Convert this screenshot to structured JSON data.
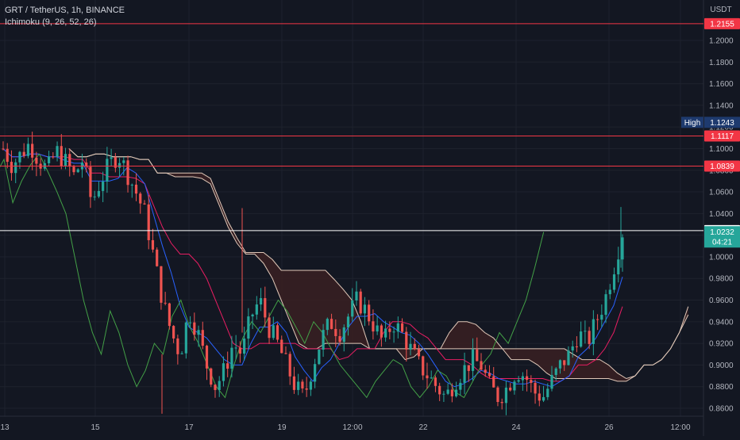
{
  "header": {
    "symbol_line": "GRT / TetherUS, 1h, BINANCE",
    "indicator_line": "Ichimoku (9, 26, 52, 26)"
  },
  "price_axis": {
    "currency": "USDT",
    "ticks": [
      "1.2000",
      "1.1800",
      "1.1600",
      "1.1400",
      "1.1200",
      "1.1000",
      "1.0800",
      "1.0600",
      "1.0400",
      "1.0200",
      "1.0000",
      "0.9800",
      "0.9600",
      "0.9400",
      "0.9200",
      "0.9000",
      "0.8800",
      "0.8600"
    ]
  },
  "time_axis": {
    "labels": [
      "13",
      "15",
      "17",
      "19",
      "12:00",
      "22",
      "24",
      "26",
      "12:00"
    ]
  },
  "levels": [
    {
      "name": "resistance-1",
      "price": 1.2155,
      "label": "1.2155",
      "color": "#f23645"
    },
    {
      "name": "resistance-2",
      "price": 1.1117,
      "label": "1.1117",
      "color": "#f23645"
    },
    {
      "name": "resistance-3",
      "price": 1.0839,
      "label": "1.0839",
      "color": "#f23645"
    },
    {
      "name": "white-level",
      "price": 1.0242,
      "label": "1.0242",
      "color": "#ffffff"
    }
  ],
  "high_marker": {
    "text": "High",
    "price": 1.1243,
    "label": "1.1243",
    "color": "#1e3a6e"
  },
  "last_price": {
    "price": 1.0232,
    "label": "1.0232",
    "countdown": "04:21",
    "color": "#26a69a"
  },
  "chart_data": {
    "type": "candlestick",
    "title": "GRT / TetherUS, 1h, BINANCE",
    "indicator": "Ichimoku (9, 26, 52, 26)",
    "ylim": [
      0.855,
      1.225
    ],
    "x_labels": [
      "13",
      "15",
      "17",
      "19",
      "12:00",
      "22",
      "24",
      "26",
      "12:00"
    ],
    "close_path": [
      1.1,
      1.085,
      1.095,
      1.105,
      1.09,
      1.08,
      1.098,
      1.088,
      1.075,
      1.09,
      1.05,
      1.07,
      1.085,
      1.095,
      1.078,
      1.06,
      1.04,
      1.0,
      0.96,
      0.93,
      0.91,
      0.95,
      0.93,
      0.9,
      0.88,
      0.895,
      0.92,
      0.91,
      0.945,
      0.96,
      0.935,
      0.92,
      0.9,
      0.88,
      0.87,
      0.9,
      0.925,
      0.94,
      0.93,
      0.945,
      0.96,
      0.95,
      0.935,
      0.92,
      0.94,
      0.93,
      0.915,
      0.9,
      0.89,
      0.88,
      0.87,
      0.885,
      0.895,
      0.905,
      0.9,
      0.88,
      0.87,
      0.88,
      0.895,
      0.89,
      0.875,
      0.87,
      0.885,
      0.9,
      0.91,
      0.93,
      0.92,
      0.94,
      0.96,
      0.99,
      1.023
    ],
    "green": {
      "color": "#26a69a"
    },
    "red": {
      "color": "#ef5350"
    }
  },
  "colors": {
    "background": "#131722",
    "grid": "#1e222d",
    "tenkan": "#2962ff",
    "kijun": "#e91e63",
    "chikou": "#43a047",
    "span_a": "#e0c8b8",
    "span_b": "#e0c8b8",
    "cloud_fill": "#3a2022"
  }
}
